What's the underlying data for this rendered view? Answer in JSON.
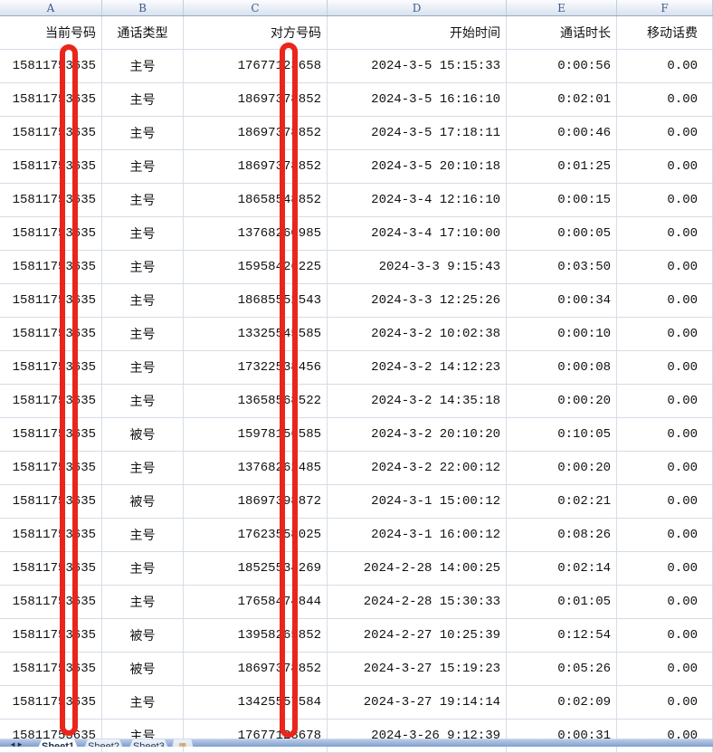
{
  "column_headers": [
    "A",
    "B",
    "C",
    "D",
    "E",
    "F"
  ],
  "table": {
    "headers": [
      "当前号码",
      "通话类型",
      "对方号码",
      "开始时间",
      "通话时长",
      "移动话费"
    ],
    "rows": [
      [
        "15811753635",
        "主号",
        "17677123658",
        "2024-3-5 15:15:33",
        "0:00:56",
        "0.00"
      ],
      [
        "15811753635",
        "主号",
        "18697378852",
        "2024-3-5 16:16:10",
        "0:02:01",
        "0.00"
      ],
      [
        "15811753635",
        "主号",
        "18697378852",
        "2024-3-5 17:18:11",
        "0:00:46",
        "0.00"
      ],
      [
        "15811753635",
        "主号",
        "18697378852",
        "2024-3-5 20:10:18",
        "0:01:25",
        "0.00"
      ],
      [
        "15811753635",
        "主号",
        "18658548852",
        "2024-3-4 12:16:10",
        "0:00:15",
        "0.00"
      ],
      [
        "15811753635",
        "主号",
        "13768260985",
        "2024-3-4 17:10:00",
        "0:00:05",
        "0.00"
      ],
      [
        "15811753635",
        "主号",
        "15958426225",
        "2024-3-3 9:15:43",
        "0:03:50",
        "0.00"
      ],
      [
        "15811753635",
        "主号",
        "18685552543",
        "2024-3-3 12:25:26",
        "0:00:34",
        "0.00"
      ],
      [
        "15811753635",
        "主号",
        "13325545585",
        "2024-3-2 10:02:38",
        "0:00:10",
        "0.00"
      ],
      [
        "15811753635",
        "主号",
        "17322538456",
        "2024-3-2 14:12:23",
        "0:00:08",
        "0.00"
      ],
      [
        "15811753635",
        "主号",
        "13658568522",
        "2024-3-2 14:35:18",
        "0:00:20",
        "0.00"
      ],
      [
        "15811753635",
        "被号",
        "15978156585",
        "2024-3-2 20:10:20",
        "0:10:05",
        "0.00"
      ],
      [
        "15811753635",
        "主号",
        "13768262485",
        "2024-3-2 22:00:12",
        "0:00:20",
        "0.00"
      ],
      [
        "15811753635",
        "被号",
        "18697398872",
        "2024-3-1 15:00:12",
        "0:02:21",
        "0.00"
      ],
      [
        "15811753635",
        "主号",
        "17623558025",
        "2024-3-1 16:00:12",
        "0:08:26",
        "0.00"
      ],
      [
        "15811753635",
        "主号",
        "18525534269",
        "2024-2-28 14:00:25",
        "0:02:14",
        "0.00"
      ],
      [
        "15811753635",
        "主号",
        "17658474844",
        "2024-2-28 15:30:33",
        "0:01:05",
        "0.00"
      ],
      [
        "15811753635",
        "被号",
        "13958265852",
        "2024-2-27 10:25:39",
        "0:12:54",
        "0.00"
      ],
      [
        "15811753635",
        "被号",
        "18697378852",
        "2024-3-27 15:19:23",
        "0:05:26",
        "0.00"
      ],
      [
        "15811753635",
        "主号",
        "13425557584",
        "2024-3-27 19:14:14",
        "0:02:09",
        "0.00"
      ],
      [
        "15811753635",
        "主号",
        "17677123678",
        "2024-3-26 9:12:39",
        "0:00:31",
        "0.00"
      ]
    ]
  },
  "annotations": {
    "redaction_bar_color": "#e9251c",
    "redaction_bars": [
      {
        "over_column": "A",
        "shape": "rounded-rectangle-outline"
      },
      {
        "over_column": "C",
        "shape": "rounded-rectangle-outline"
      }
    ]
  },
  "sheet_bar": {
    "tabs": [
      "Sheet1",
      "Sheet2",
      "Sheet3"
    ],
    "active_tab": "Sheet1",
    "nav_prev_icon": "◄",
    "nav_next_icon": "►",
    "insert_icon": "▦"
  },
  "colors": {
    "gridline": "#d5dbe7",
    "header_strip_text": "#3e5a88",
    "tab_bar_blue": "#7e9fd2"
  }
}
